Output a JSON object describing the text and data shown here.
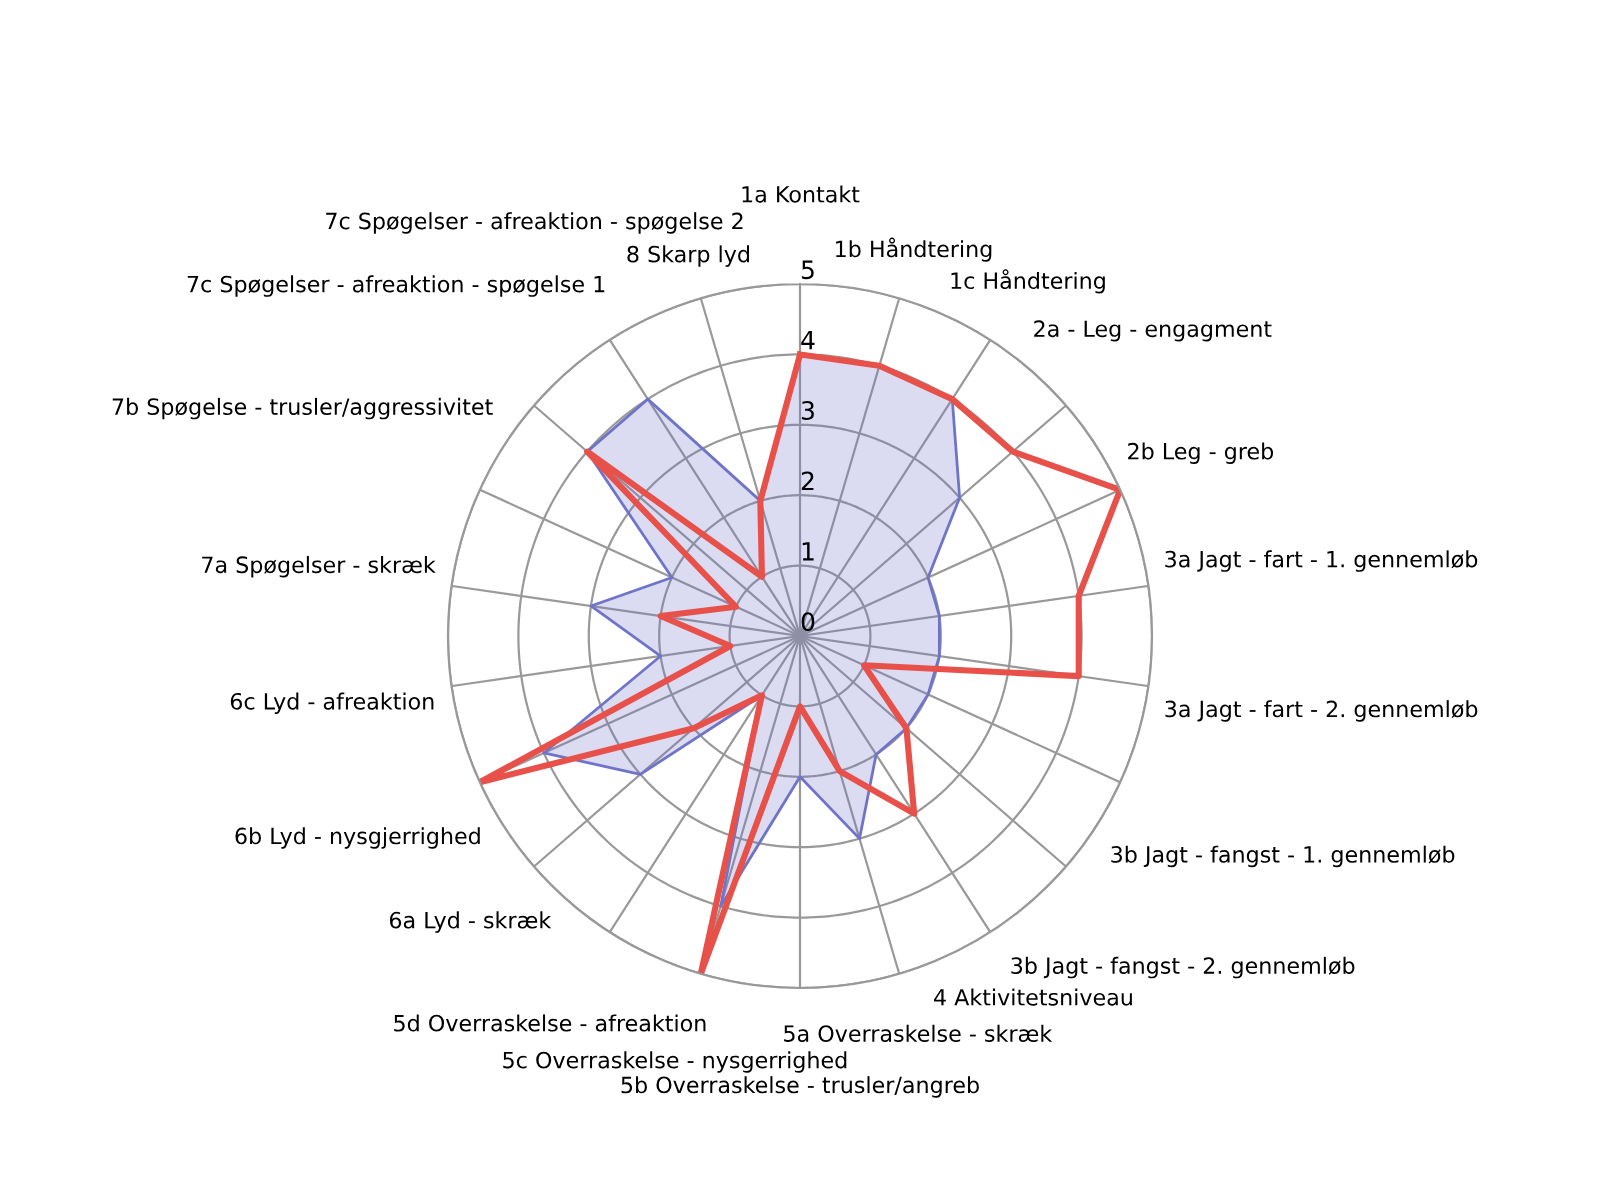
{
  "chart_data": {
    "type": "radar",
    "categories": [
      "1a Kontakt",
      "1b Håndtering",
      "1c Håndtering",
      "2a - Leg - engagment",
      "2b Leg - greb",
      "3a Jagt - fart - 1. gennemløb",
      "3a Jagt - fart - 2. gennemløb",
      "3b Jagt - fangst - 1. gennemløb",
      "3b Jagt - fangst - 2. gennemløb",
      "4 Aktivitetsniveau",
      "5a Overraskelse - skræk",
      "5b Overraskelse - trusler/angreb",
      "5c Overraskelse - nysgerrighed",
      "5d Overraskelse - afreaktion",
      "6a Lyd - skræk",
      "6b Lyd - nysgjerrighed",
      "6c Lyd - afreaktion",
      "7a Spøgelser - skræk",
      "7b Spøgelse - trusler/aggressivitet",
      "7c Spøgelser - afreaktion - spøgelse 1",
      "7c Spøgelser - afreaktion - spøgelse 2",
      "8 Skarp lyd"
    ],
    "series": [
      {
        "type": "area",
        "color": "#6f74c9",
        "values": [
          4,
          4,
          4,
          3,
          2,
          2,
          2,
          2,
          2,
          2,
          3,
          2,
          4,
          1,
          3,
          4,
          2,
          3,
          2,
          4,
          4,
          2
        ]
      },
      {
        "color": "#e8504a",
        "values": [
          4,
          4,
          4,
          4,
          5,
          4,
          4,
          1,
          2,
          3,
          2,
          1,
          5,
          1,
          2,
          5,
          1,
          2,
          1,
          4,
          1,
          2
        ]
      }
    ],
    "ylim": [
      0,
      5
    ],
    "yticks": [
      0,
      1,
      2,
      3,
      4,
      5
    ],
    "grid": true
  }
}
